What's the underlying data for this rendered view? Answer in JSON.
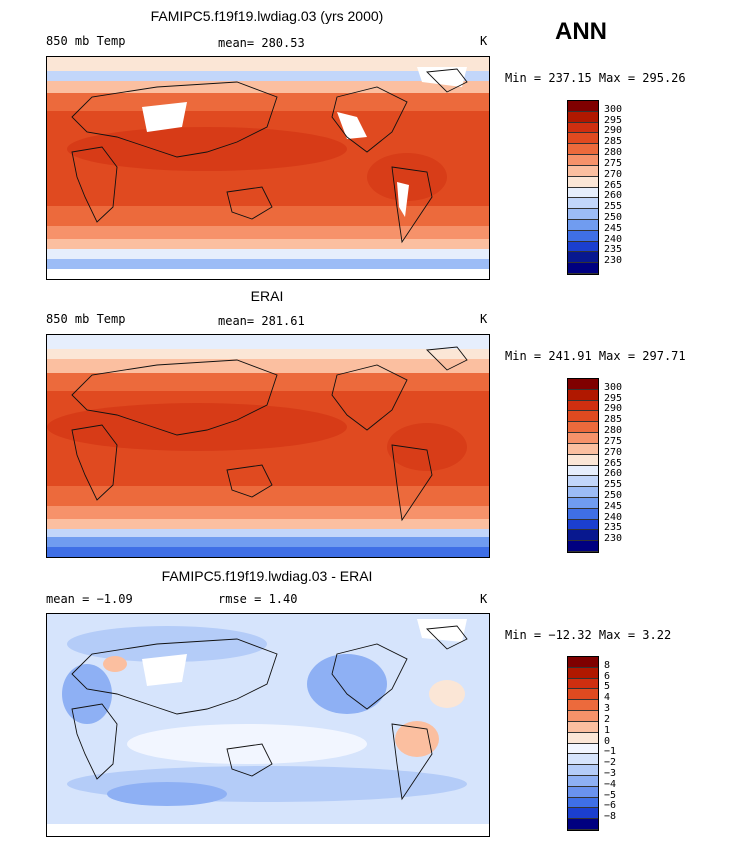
{
  "season": "ANN",
  "panels": [
    {
      "title": "FAMIPC5.f19f19.lwdiag.03 (yrs 2000)",
      "left_text": "850 mb Temp",
      "center_text": "mean= 280.53",
      "units": "K",
      "minmax": "Min = 237.15 Max = 295.26",
      "colorbar_labels": [
        "300",
        "295",
        "290",
        "285",
        "280",
        "275",
        "270",
        "265",
        "260",
        "255",
        "250",
        "245",
        "240",
        "235",
        "230"
      ]
    },
    {
      "title": "ERAI",
      "left_text": "850 mb Temp",
      "center_text": "mean= 281.61",
      "units": "K",
      "minmax": "Min = 241.91 Max = 297.71",
      "colorbar_labels": [
        "300",
        "295",
        "290",
        "285",
        "280",
        "275",
        "270",
        "265",
        "260",
        "255",
        "250",
        "245",
        "240",
        "235",
        "230"
      ]
    },
    {
      "title": "FAMIPC5.f19f19.lwdiag.03 - ERAI",
      "left_text": "mean =  −1.09",
      "center_text": "rmse =   1.40",
      "units": "K",
      "minmax": "Min = −12.32 Max =   3.22",
      "colorbar_labels": [
        "8",
        "6",
        "5",
        "4",
        "3",
        "2",
        "1",
        "0",
        "−1",
        "−2",
        "−3",
        "−4",
        "−5",
        "−6",
        "−8"
      ]
    }
  ],
  "colors": {
    "abs_scale": [
      "#7f0000",
      "#b01800",
      "#cf2f10",
      "#e04a20",
      "#ec6a3c",
      "#f6926a",
      "#fbbfa0",
      "#fbe6d6",
      "#e6eefc",
      "#c2d6fa",
      "#9cbcf6",
      "#709cf0",
      "#3f6fe6",
      "#1b3fcf",
      "#08188f",
      "#000080"
    ],
    "diff_scale": [
      "#7f0000",
      "#b01800",
      "#cf2f10",
      "#e04a20",
      "#ec6a3c",
      "#f6926a",
      "#fbbfa0",
      "#fbe6d6",
      "#f2f6ff",
      "#d6e4fc",
      "#b4ccf8",
      "#8eb0f4",
      "#6a92ee",
      "#3f6fe6",
      "#1b3fcf",
      "#000080"
    ]
  }
}
